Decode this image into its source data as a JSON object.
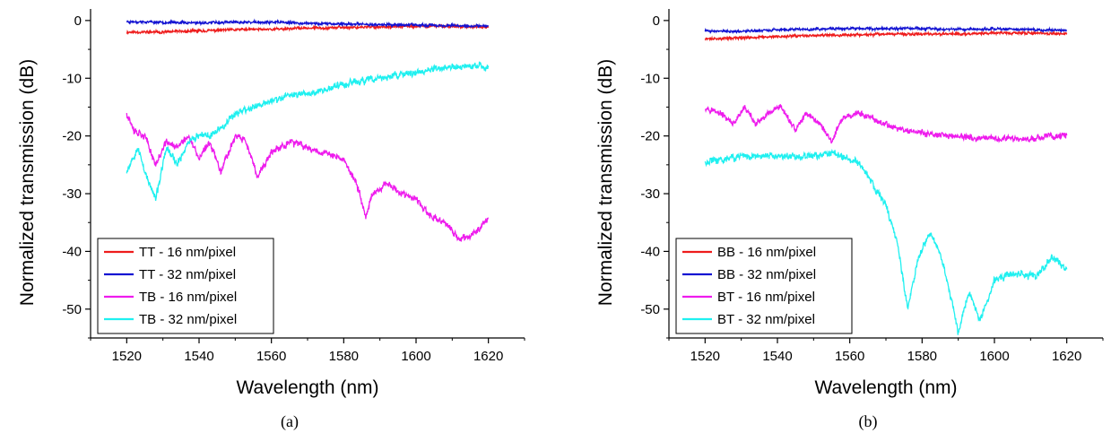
{
  "chart_data": [
    {
      "type": "line",
      "caption": "(a)",
      "xlabel": "Wavelength (nm)",
      "ylabel": "Normalized transmission (dB)",
      "xlim": [
        1510,
        1630
      ],
      "ylim": [
        -55,
        2
      ],
      "xticks": [
        1520,
        1540,
        1560,
        1580,
        1600,
        1620
      ],
      "yticks": [
        0,
        -10,
        -20,
        -30,
        -40,
        -50
      ],
      "grid": false,
      "legend_position": "bottom-left",
      "colors": {
        "red": "#ee1c1c",
        "blue": "#1414d2",
        "magenta": "#ee1ced",
        "cyan": "#1ff0f0"
      },
      "series": [
        {
          "name": "TT - 16 nm/pixel",
          "color": "#ee1c1c",
          "noise": 0.5,
          "seed": 11,
          "x": [
            1520,
            1530,
            1540,
            1550,
            1560,
            1570,
            1580,
            1590,
            1600,
            1610,
            1620
          ],
          "y": [
            -2,
            -2,
            -1.8,
            -1.6,
            -1.5,
            -1.3,
            -1.2,
            -1.1,
            -1.0,
            -1.0,
            -1.2
          ]
        },
        {
          "name": "TT - 32 nm/pixel",
          "color": "#1414d2",
          "noise": 0.5,
          "seed": 23,
          "x": [
            1520,
            1530,
            1540,
            1550,
            1560,
            1570,
            1580,
            1590,
            1600,
            1610,
            1620
          ],
          "y": [
            -0.2,
            -0.3,
            -0.4,
            -0.3,
            -0.3,
            -0.5,
            -0.6,
            -0.7,
            -0.8,
            -0.9,
            -1.0
          ]
        },
        {
          "name": "TB - 16 nm/pixel",
          "color": "#ee1ced",
          "noise": 1.4,
          "seed": 37,
          "x": [
            1520,
            1522,
            1525,
            1528,
            1531,
            1534,
            1537,
            1540,
            1543,
            1546,
            1550,
            1553,
            1556,
            1560,
            1565,
            1570,
            1575,
            1580,
            1584,
            1586,
            1588,
            1592,
            1596,
            1600,
            1604,
            1608,
            1612,
            1616,
            1620
          ],
          "y": [
            -16,
            -19,
            -20,
            -25,
            -21,
            -22,
            -20,
            -24,
            -21,
            -26,
            -20,
            -21,
            -27,
            -23,
            -21,
            -22,
            -23,
            -24,
            -29,
            -34,
            -30,
            -28,
            -30,
            -31,
            -34,
            -35,
            -38,
            -37,
            -34
          ]
        },
        {
          "name": "TB - 32 nm/pixel",
          "color": "#1ff0f0",
          "noise": 1.4,
          "seed": 53,
          "x": [
            1520,
            1523,
            1526,
            1528,
            1531,
            1534,
            1537,
            1540,
            1543,
            1547,
            1550,
            1555,
            1560,
            1565,
            1570,
            1575,
            1580,
            1585,
            1590,
            1595,
            1600,
            1605,
            1610,
            1615,
            1620
          ],
          "y": [
            -26,
            -22,
            -28,
            -31,
            -22,
            -25,
            -21,
            -20,
            -20,
            -18,
            -16,
            -15,
            -14,
            -13,
            -12.5,
            -12,
            -11,
            -10.5,
            -10,
            -9.5,
            -9,
            -8.5,
            -8,
            -8,
            -8
          ]
        }
      ]
    },
    {
      "type": "line",
      "caption": "(b)",
      "xlabel": "Wavelength (nm)",
      "ylabel": "Normalized transmission (dB)",
      "xlim": [
        1510,
        1630
      ],
      "ylim": [
        -55,
        2
      ],
      "xticks": [
        1520,
        1540,
        1560,
        1580,
        1600,
        1620
      ],
      "yticks": [
        0,
        -10,
        -20,
        -30,
        -40,
        -50
      ],
      "grid": false,
      "legend_position": "bottom-left",
      "series": [
        {
          "name": "BB - 16 nm/pixel",
          "color": "#ee1c1c",
          "noise": 0.5,
          "seed": 71,
          "x": [
            1520,
            1530,
            1540,
            1550,
            1560,
            1570,
            1580,
            1590,
            1600,
            1610,
            1620
          ],
          "y": [
            -3.2,
            -3.0,
            -2.8,
            -2.6,
            -2.5,
            -2.4,
            -2.3,
            -2.3,
            -2.2,
            -2.2,
            -2.3
          ]
        },
        {
          "name": "BB - 32 nm/pixel",
          "color": "#1414d2",
          "noise": 0.5,
          "seed": 89,
          "x": [
            1520,
            1530,
            1540,
            1550,
            1560,
            1570,
            1580,
            1590,
            1600,
            1610,
            1620
          ],
          "y": [
            -1.8,
            -1.9,
            -1.6,
            -1.5,
            -1.4,
            -1.4,
            -1.4,
            -1.5,
            -1.5,
            -1.6,
            -1.7
          ]
        },
        {
          "name": "BT - 16 nm/pixel",
          "color": "#ee1ced",
          "noise": 1.2,
          "seed": 97,
          "x": [
            1520,
            1524,
            1528,
            1531,
            1534,
            1538,
            1541,
            1545,
            1548,
            1552,
            1555,
            1558,
            1562,
            1566,
            1570,
            1575,
            1580,
            1585,
            1590,
            1595,
            1600,
            1605,
            1610,
            1615,
            1620
          ],
          "y": [
            -15,
            -16,
            -18,
            -15,
            -18,
            -16,
            -15,
            -19,
            -16,
            -18,
            -21,
            -17,
            -16,
            -17,
            -18,
            -19,
            -19.5,
            -20,
            -20,
            -20.5,
            -20.5,
            -20.5,
            -20.5,
            -20,
            -20
          ]
        },
        {
          "name": "BT - 32 nm/pixel",
          "color": "#1ff0f0",
          "noise": 1.4,
          "seed": 113,
          "x": [
            1520,
            1525,
            1530,
            1535,
            1540,
            1545,
            1550,
            1555,
            1560,
            1563,
            1566,
            1570,
            1573,
            1576,
            1579,
            1582,
            1585,
            1588,
            1590,
            1593,
            1596,
            1600,
            1604,
            1608,
            1612,
            1616,
            1620
          ],
          "y": [
            -24.5,
            -24,
            -23.5,
            -23.5,
            -23.5,
            -23.5,
            -23.5,
            -23,
            -24,
            -25,
            -28,
            -32,
            -38,
            -50,
            -41,
            -37,
            -40,
            -48,
            -54,
            -47,
            -52,
            -45,
            -44,
            -44,
            -44,
            -41,
            -43
          ]
        }
      ]
    }
  ]
}
